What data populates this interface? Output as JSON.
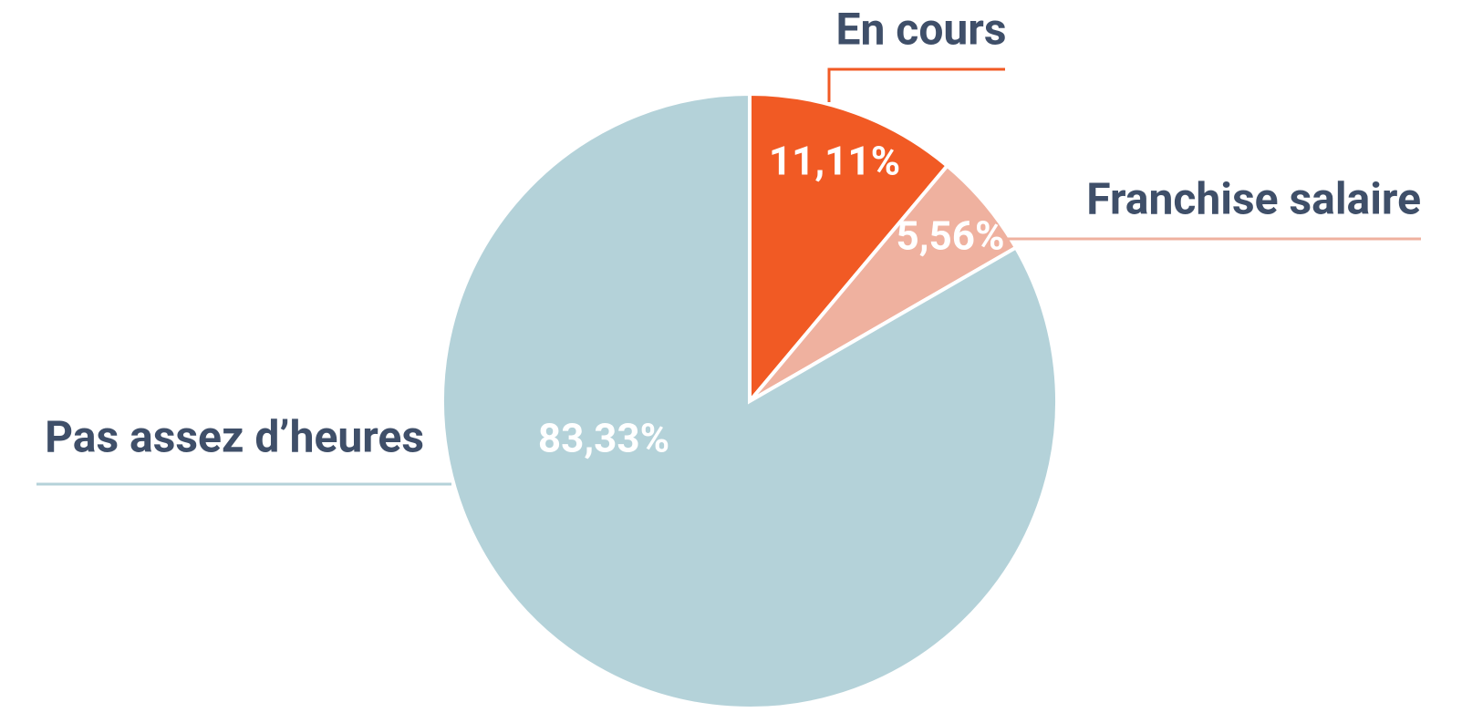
{
  "chart_data": {
    "type": "pie",
    "categories": [
      "En cours",
      "Franchise salaire",
      "Pas assez d’heures"
    ],
    "values": [
      11.11,
      5.56,
      83.33
    ],
    "value_labels": [
      "11,11%",
      "5,56%",
      "83,33%"
    ],
    "colors": [
      "#f15a24",
      "#efb19f",
      "#b4d2d9"
    ]
  }
}
